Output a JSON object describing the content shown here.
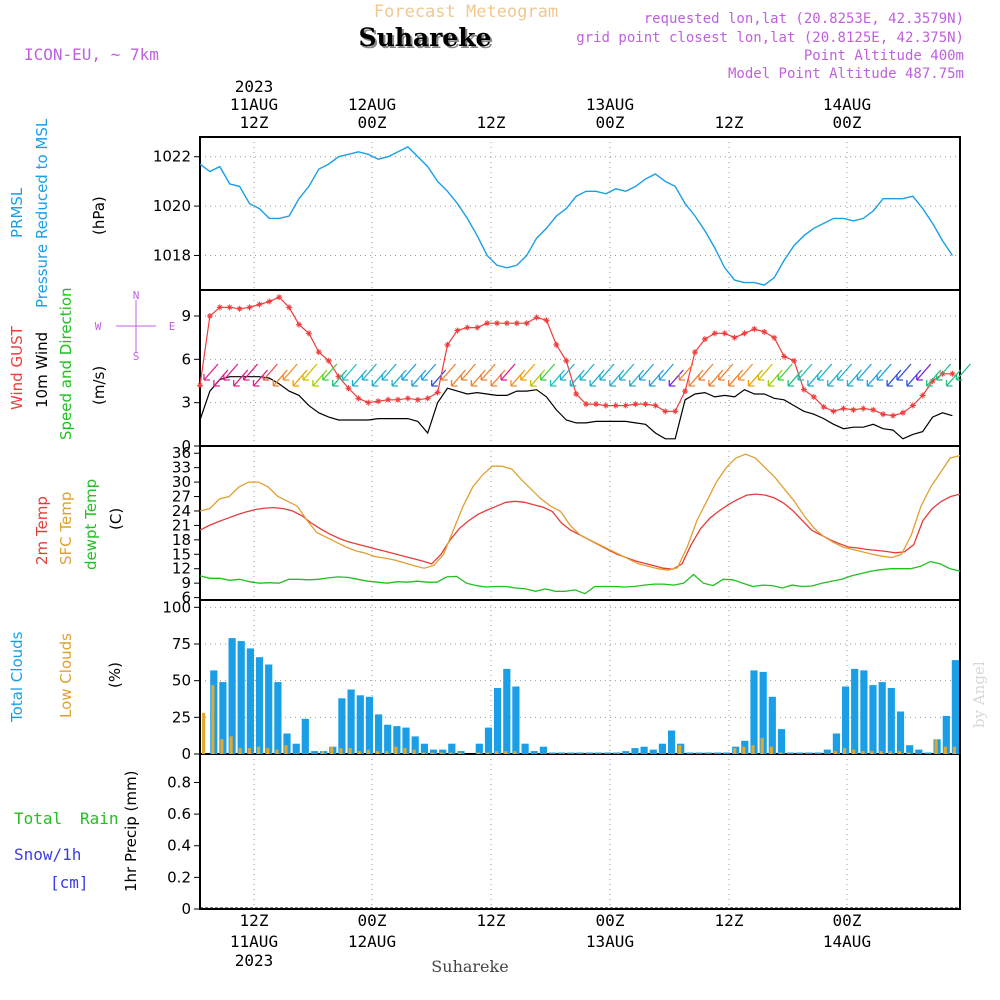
{
  "header": {
    "super_title": "Forecast Meteogram",
    "location": "Suhareke",
    "model": "ICON-EU, ~ 7km",
    "requested": "requested lon,lat (20.8253E, 42.3579N)",
    "grid_point": "grid point closest lon,lat (20.8125E, 42.375N)",
    "point_altitude": "Point Altitude 400m",
    "model_altitude": "Model Point Altitude 487.75m",
    "credit": "by Angel",
    "bottom_name": "Suhareke"
  },
  "colors": {
    "pressure": "#1a9fe6",
    "gust": "#f03c3c",
    "wind": "#000000",
    "temp2m": "#e63c3c",
    "sfc": "#e0a030",
    "dewpt": "#20c020",
    "total_clouds": "#1a9fe6",
    "low_clouds": "#e0a830",
    "rain": "#20c020",
    "snow": "#3c3ce6",
    "purple": "#c060e0"
  },
  "time_axis": {
    "top": {
      "year": "2023",
      "d0": "11AUG",
      "h0": "12Z"
    },
    "labels": [
      {
        "top": "12AUG",
        "bottom": "00Z"
      },
      {
        "top": "",
        "bottom": "12Z"
      },
      {
        "top": "13AUG",
        "bottom": "00Z"
      },
      {
        "top": "",
        "bottom": "12Z"
      },
      {
        "top": "14AUG",
        "bottom": "00Z"
      }
    ],
    "bottom": [
      {
        "h": "12Z",
        "d": "11AUG",
        "y": "2023"
      },
      {
        "h": "00Z",
        "d": "12AUG",
        "y": ""
      },
      {
        "h": "12Z",
        "d": "",
        "y": ""
      },
      {
        "h": "00Z",
        "d": "13AUG",
        "y": ""
      },
      {
        "h": "12Z",
        "d": "",
        "y": ""
      },
      {
        "h": "00Z",
        "d": "14AUG",
        "y": ""
      }
    ]
  },
  "panel_labels": {
    "p1": [
      "PRMSL",
      "Pressure Reduced to MSL",
      "(hPa)"
    ],
    "p2": [
      "Wind GUST",
      "10m Wind",
      "Speed and Direction",
      "(m/s)"
    ],
    "compass": {
      "n": "N",
      "s": "S",
      "w": "W",
      "e": "E"
    },
    "p3": [
      "2m Temp",
      "SFC Temp",
      "dewpt Temp",
      "(C)"
    ],
    "p4": [
      "Total Clouds",
      "Low Clouds",
      "(%)"
    ],
    "p5": [
      "Total",
      "Rain",
      "Snow/1h",
      "[cm]",
      "1hr Precip (mm)"
    ]
  },
  "chart_data": [
    {
      "type": "line",
      "name": "PRMSL",
      "ylim": [
        1016.6,
        1022.8
      ],
      "yticks": [
        1018,
        1020,
        1022
      ],
      "x_hours": [
        0,
        1,
        2,
        3,
        4,
        5,
        6,
        7,
        8,
        9,
        10,
        11,
        12,
        13,
        14,
        15,
        16,
        17,
        18,
        19,
        20,
        21,
        22,
        23,
        24,
        25,
        26,
        27,
        28,
        29,
        30,
        31,
        32,
        33,
        34,
        35,
        36,
        37,
        38,
        39,
        40,
        41,
        42,
        43,
        44,
        45,
        46,
        47,
        48,
        49,
        50,
        51,
        52,
        53,
        54,
        55,
        56,
        57,
        58,
        59,
        60,
        61,
        62,
        63,
        64,
        65,
        66,
        67,
        68,
        69,
        70,
        71,
        72,
        73,
        74,
        75,
        76
      ],
      "series": [
        {
          "name": "Pressure",
          "values": [
            1021.7,
            1021.4,
            1021.6,
            1020.9,
            1020.8,
            1020.1,
            1019.9,
            1019.5,
            1019.5,
            1019.6,
            1020.3,
            1020.8,
            1021.5,
            1021.7,
            1022.0,
            1022.1,
            1022.2,
            1022.1,
            1021.9,
            1022.0,
            1022.2,
            1022.4,
            1022.0,
            1021.6,
            1021.0,
            1020.6,
            1020.1,
            1019.5,
            1018.8,
            1018.0,
            1017.6,
            1017.5,
            1017.6,
            1018.0,
            1018.7,
            1019.1,
            1019.6,
            1019.9,
            1020.4,
            1020.6,
            1020.6,
            1020.5,
            1020.7,
            1020.6,
            1020.8,
            1021.1,
            1021.3,
            1021.0,
            1020.8,
            1020.1,
            1019.6,
            1019.0,
            1018.3,
            1017.5,
            1017.0,
            1016.9,
            1016.9,
            1016.8,
            1017.1,
            1017.8,
            1018.4,
            1018.8,
            1019.1,
            1019.3,
            1019.5,
            1019.5,
            1019.4,
            1019.5,
            1019.8,
            1020.3,
            1020.3,
            1020.3,
            1020.4,
            1019.9,
            1019.3,
            1018.6,
            1018.0
          ]
        }
      ]
    },
    {
      "type": "line",
      "name": "Wind",
      "ylim": [
        0,
        10.8
      ],
      "yticks": [
        0,
        3,
        6,
        9
      ],
      "series": [
        {
          "name": "Wind GUST",
          "values": [
            4.2,
            9.0,
            9.6,
            9.6,
            9.5,
            9.6,
            9.8,
            10.0,
            10.3,
            9.6,
            8.4,
            7.8,
            6.5,
            5.9,
            4.8,
            4.0,
            3.3,
            3.0,
            3.1,
            3.2,
            3.2,
            3.3,
            3.2,
            3.3,
            3.7,
            7.0,
            8.0,
            8.2,
            8.2,
            8.5,
            8.5,
            8.5,
            8.5,
            8.5,
            8.9,
            8.7,
            7.0,
            5.9,
            3.6,
            2.9,
            2.9,
            2.8,
            2.8,
            2.8,
            2.9,
            2.9,
            2.8,
            2.4,
            2.4,
            3.8,
            6.5,
            7.4,
            7.8,
            7.8,
            7.5,
            7.8,
            8.1,
            7.9,
            7.5,
            6.2,
            5.9,
            3.9,
            3.4,
            2.7,
            2.4,
            2.6,
            2.5,
            2.6,
            2.5,
            2.2,
            2.1,
            2.3,
            2.8,
            3.5,
            4.5,
            5.0,
            5.0
          ]
        },
        {
          "name": "10m Wind",
          "values": [
            1.8,
            3.8,
            4.6,
            4.8,
            4.8,
            4.8,
            4.8,
            4.7,
            4.3,
            3.8,
            3.5,
            2.8,
            2.3,
            2.0,
            1.8,
            1.8,
            1.8,
            1.8,
            1.9,
            1.9,
            1.9,
            1.9,
            1.7,
            0.9,
            3.0,
            4.0,
            3.8,
            3.6,
            3.7,
            3.6,
            3.5,
            3.5,
            3.8,
            3.8,
            3.9,
            3.4,
            2.5,
            1.8,
            1.6,
            1.6,
            1.7,
            1.7,
            1.7,
            1.7,
            1.6,
            1.5,
            0.9,
            0.5,
            0.5,
            3.2,
            3.6,
            3.7,
            3.4,
            3.5,
            3.4,
            3.9,
            3.6,
            3.6,
            3.3,
            3.2,
            2.8,
            2.4,
            2.2,
            1.9,
            1.5,
            1.2,
            1.3,
            1.3,
            1.5,
            1.2,
            1.1,
            0.5,
            0.8,
            1.0,
            2.0,
            2.3,
            2.1
          ]
        }
      ],
      "direction_barbs": "hourly arrows from westerly to northerly, color-coded by direction"
    },
    {
      "type": "line",
      "name": "Temperature",
      "ylim": [
        5.5,
        37.5
      ],
      "yticks": [
        6,
        9,
        12,
        15,
        18,
        21,
        24,
        27,
        30,
        33,
        36
      ],
      "series": [
        {
          "name": "2m Temp",
          "values": [
            20.0,
            21.0,
            21.8,
            22.5,
            23.2,
            23.8,
            24.3,
            24.6,
            24.7,
            24.5,
            24.0,
            23.0,
            21.5,
            20.3,
            19.2,
            18.3,
            17.6,
            17.1,
            16.6,
            16.1,
            15.6,
            15.1,
            14.6,
            14.1,
            13.6,
            13.0,
            15.0,
            18.0,
            20.4,
            22.0,
            23.3,
            24.2,
            25.0,
            25.8,
            26.0,
            25.8,
            25.3,
            24.8,
            23.9,
            21.5,
            20.0,
            19.0,
            18.0,
            17.0,
            16.0,
            15.0,
            14.3,
            13.6,
            13.1,
            12.6,
            12.1,
            11.9,
            13.0,
            17.0,
            20.3,
            22.5,
            24.0,
            25.3,
            26.4,
            27.3,
            27.5,
            27.3,
            26.7,
            25.6,
            24.0,
            22.0,
            20.0,
            19.0,
            18.0,
            17.2,
            16.5,
            16.3,
            16.0,
            15.8,
            15.6,
            15.3,
            15.5,
            17.0,
            22.0,
            24.5,
            26.0,
            27.0,
            27.5
          ]
        },
        {
          "name": "SFC Temp",
          "values": [
            24.0,
            24.5,
            26.5,
            27.0,
            29.0,
            30.0,
            30.0,
            29.0,
            27.0,
            26.0,
            25.0,
            22.0,
            19.5,
            18.5,
            17.5,
            16.5,
            15.7,
            15.2,
            14.5,
            14.2,
            13.8,
            13.2,
            12.6,
            12.1,
            12.7,
            15.0,
            20.0,
            25.0,
            29.0,
            31.5,
            33.3,
            33.3,
            32.7,
            30.5,
            28.5,
            26.5,
            25.0,
            23.9,
            21.0,
            19.0,
            18.0,
            17.0,
            16.0,
            15.0,
            14.0,
            13.0,
            12.5,
            12.0,
            11.7,
            12.2,
            16.5,
            22.0,
            26.0,
            30.0,
            33.0,
            35.0,
            35.8,
            35.0,
            33.0,
            31.0,
            28.5,
            26.0,
            23.0,
            20.5,
            18.7,
            17.5,
            16.5,
            16.0,
            15.5,
            15.0,
            14.6,
            14.3,
            15.0,
            19.0,
            25.0,
            29.0,
            32.0,
            35.0,
            35.5
          ]
        },
        {
          "name": "dewpt Temp",
          "values": [
            10.5,
            10.0,
            10.0,
            9.6,
            9.8,
            9.3,
            9.0,
            9.1,
            9.0,
            9.8,
            9.8,
            9.7,
            9.8,
            10.1,
            10.3,
            10.2,
            9.8,
            9.4,
            9.2,
            9.0,
            9.3,
            9.2,
            9.4,
            9.2,
            9.2,
            10.3,
            10.4,
            9.0,
            8.5,
            8.2,
            8.3,
            8.3,
            8.0,
            7.8,
            7.3,
            7.8,
            7.3,
            7.3,
            7.6,
            6.8,
            8.3,
            8.3,
            8.3,
            8.2,
            8.3,
            8.6,
            8.8,
            8.8,
            8.6,
            9.0,
            10.8,
            9.0,
            8.5,
            9.8,
            9.7,
            9.0,
            8.3,
            8.6,
            8.5,
            8.0,
            8.6,
            8.3,
            8.4,
            9.0,
            9.4,
            9.8,
            10.5,
            11.0,
            11.5,
            11.8,
            12.0,
            12.0,
            12.0,
            12.5,
            13.5,
            13.0,
            12.0,
            11.5
          ]
        }
      ]
    },
    {
      "type": "bar",
      "name": "Clouds",
      "ylim": [
        0,
        105
      ],
      "yticks": [
        0,
        25,
        50,
        75,
        100
      ],
      "series": [
        {
          "name": "Total Clouds",
          "values": [
            0,
            57,
            49,
            79,
            77,
            72,
            66,
            61,
            49,
            14,
            7,
            24,
            2,
            2,
            5,
            38,
            44,
            40,
            39,
            27,
            20,
            19,
            18,
            12,
            7,
            3,
            3,
            7,
            2,
            0,
            7,
            18,
            45,
            58,
            46,
            7,
            2,
            5,
            1,
            1,
            1,
            1,
            1,
            1,
            1,
            1,
            2,
            4,
            5,
            3,
            7,
            16,
            7,
            1,
            1,
            1,
            1,
            1,
            5,
            9,
            57,
            56,
            39,
            17,
            1,
            1,
            1,
            1,
            3,
            14,
            46,
            58,
            57,
            47,
            49,
            45,
            29,
            6,
            3,
            1,
            10,
            26,
            64
          ]
        },
        {
          "name": "Low Clouds",
          "values": [
            28,
            47,
            10,
            12,
            4,
            4,
            5,
            4,
            3,
            6,
            0,
            0,
            0,
            2,
            5,
            4,
            4,
            2,
            3,
            2,
            2,
            5,
            4,
            3,
            1,
            1,
            1,
            1,
            1,
            0,
            1,
            1,
            2,
            2,
            2,
            0,
            0,
            0,
            0,
            0,
            0,
            0,
            0,
            0,
            0,
            0,
            0,
            0,
            0,
            0,
            0,
            0,
            6,
            0,
            0,
            0,
            0,
            0,
            4,
            5,
            6,
            11,
            5,
            1,
            0,
            0,
            0,
            0,
            0,
            2,
            4,
            3,
            2,
            2,
            2,
            2,
            2,
            1,
            0,
            0,
            10,
            5,
            5
          ]
        }
      ]
    },
    {
      "type": "bar",
      "name": "Precipitation",
      "ylabel": "1hr Precip (mm)",
      "ylim": [
        0,
        0.98
      ],
      "yticks": [
        "0",
        "0.2",
        "0.4",
        "0.6",
        "0.8"
      ],
      "series": [
        {
          "name": "Total Rain",
          "values": []
        },
        {
          "name": "Snow/1h",
          "values": []
        }
      ]
    }
  ]
}
